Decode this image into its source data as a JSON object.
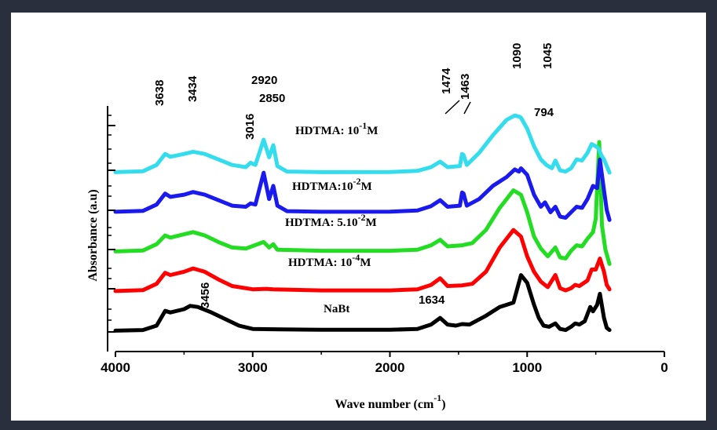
{
  "chart_data": {
    "type": "line",
    "title": "",
    "xlabel": "Wave number (cm",
    "xlabel_sup": "-1",
    "xlabel_close": ")",
    "ylabel": "Absorbance (a.u)",
    "xlim": [
      4000,
      0
    ],
    "x_ticks": [
      "4000",
      "3000",
      "2000",
      "1000",
      "0"
    ],
    "grid": false,
    "series": [
      {
        "name": "NaBt",
        "color": "#000000",
        "offset": 0,
        "points": [
          [
            4000,
            0.02
          ],
          [
            3800,
            0.05
          ],
          [
            3700,
            0.25
          ],
          [
            3638,
            0.92
          ],
          [
            3600,
            0.85
          ],
          [
            3500,
            1.0
          ],
          [
            3456,
            1.15
          ],
          [
            3400,
            1.1
          ],
          [
            3300,
            0.85
          ],
          [
            3200,
            0.55
          ],
          [
            3100,
            0.25
          ],
          [
            3000,
            0.1
          ],
          [
            2800,
            0.08
          ],
          [
            2500,
            0.06
          ],
          [
            2000,
            0.06
          ],
          [
            1800,
            0.1
          ],
          [
            1700,
            0.3
          ],
          [
            1634,
            0.6
          ],
          [
            1580,
            0.3
          ],
          [
            1520,
            0.25
          ],
          [
            1474,
            0.32
          ],
          [
            1420,
            0.3
          ],
          [
            1300,
            0.7
          ],
          [
            1200,
            1.1
          ],
          [
            1100,
            1.3
          ],
          [
            1045,
            2.55
          ],
          [
            1000,
            2.2
          ],
          [
            950,
            1.2
          ],
          [
            915,
            0.6
          ],
          [
            880,
            0.25
          ],
          [
            840,
            0.2
          ],
          [
            794,
            0.35
          ],
          [
            760,
            0.1
          ],
          [
            720,
            0.05
          ],
          [
            680,
            0.2
          ],
          [
            650,
            0.35
          ],
          [
            620,
            0.3
          ],
          [
            580,
            0.45
          ],
          [
            540,
            1.1
          ],
          [
            520,
            0.9
          ],
          [
            490,
            1.2
          ],
          [
            470,
            1.7
          ],
          [
            440,
            0.6
          ],
          [
            420,
            0.15
          ],
          [
            400,
            0.05
          ]
        ]
      },
      {
        "name": "HDTMA: 10",
        "sup": "-4",
        "name_tail": "M",
        "color": "#ff0000",
        "offset": 1,
        "points": [
          [
            4000,
            0.02
          ],
          [
            3800,
            0.06
          ],
          [
            3700,
            0.35
          ],
          [
            3638,
            0.85
          ],
          [
            3600,
            0.75
          ],
          [
            3500,
            0.9
          ],
          [
            3434,
            1.05
          ],
          [
            3350,
            0.9
          ],
          [
            3250,
            0.55
          ],
          [
            3150,
            0.25
          ],
          [
            3000,
            0.1
          ],
          [
            2900,
            0.12
          ],
          [
            2850,
            0.1
          ],
          [
            2500,
            0.05
          ],
          [
            2000,
            0.05
          ],
          [
            1800,
            0.1
          ],
          [
            1700,
            0.3
          ],
          [
            1634,
            0.6
          ],
          [
            1580,
            0.25
          ],
          [
            1474,
            0.28
          ],
          [
            1400,
            0.35
          ],
          [
            1300,
            0.9
          ],
          [
            1200,
            2.0
          ],
          [
            1100,
            2.8
          ],
          [
            1045,
            2.5
          ],
          [
            1000,
            1.6
          ],
          [
            950,
            0.9
          ],
          [
            900,
            0.45
          ],
          [
            850,
            0.2
          ],
          [
            794,
            0.75
          ],
          [
            760,
            0.15
          ],
          [
            720,
            0.05
          ],
          [
            680,
            0.15
          ],
          [
            650,
            0.3
          ],
          [
            620,
            0.25
          ],
          [
            560,
            0.5
          ],
          [
            530,
            1.0
          ],
          [
            500,
            1.0
          ],
          [
            470,
            1.5
          ],
          [
            440,
            0.9
          ],
          [
            420,
            0.3
          ],
          [
            400,
            0.1
          ]
        ]
      },
      {
        "name": "HDTMA: 5.10",
        "sup": "-2",
        "name_tail": "M",
        "color": "#22dd22",
        "offset": 2,
        "points": [
          [
            4000,
            0.02
          ],
          [
            3800,
            0.06
          ],
          [
            3700,
            0.35
          ],
          [
            3638,
            0.75
          ],
          [
            3600,
            0.65
          ],
          [
            3500,
            0.8
          ],
          [
            3434,
            0.9
          ],
          [
            3350,
            0.75
          ],
          [
            3250,
            0.45
          ],
          [
            3150,
            0.2
          ],
          [
            3050,
            0.15
          ],
          [
            2920,
            0.45
          ],
          [
            2880,
            0.2
          ],
          [
            2850,
            0.35
          ],
          [
            2820,
            0.1
          ],
          [
            2500,
            0.05
          ],
          [
            2000,
            0.05
          ],
          [
            1800,
            0.1
          ],
          [
            1700,
            0.3
          ],
          [
            1634,
            0.55
          ],
          [
            1580,
            0.25
          ],
          [
            1474,
            0.3
          ],
          [
            1400,
            0.4
          ],
          [
            1300,
            1.0
          ],
          [
            1200,
            2.0
          ],
          [
            1100,
            2.8
          ],
          [
            1045,
            2.6
          ],
          [
            1000,
            1.8
          ],
          [
            950,
            0.7
          ],
          [
            900,
            0.15
          ],
          [
            850,
            -0.2
          ],
          [
            794,
            0.2
          ],
          [
            760,
            -0.25
          ],
          [
            720,
            -0.3
          ],
          [
            680,
            0.05
          ],
          [
            640,
            0.3
          ],
          [
            600,
            0.25
          ],
          [
            560,
            0.6
          ],
          [
            520,
            0.9
          ],
          [
            500,
            1.5
          ],
          [
            475,
            5.0
          ],
          [
            455,
            1.2
          ],
          [
            430,
            0.1
          ],
          [
            400,
            -0.55
          ]
        ]
      },
      {
        "name": "HDTMA:10",
        "sup": "-2",
        "name_tail": "M",
        "color": "#1a1aee",
        "offset": 3,
        "points": [
          [
            4000,
            0.02
          ],
          [
            3800,
            0.06
          ],
          [
            3700,
            0.35
          ],
          [
            3638,
            0.85
          ],
          [
            3600,
            0.7
          ],
          [
            3500,
            0.8
          ],
          [
            3434,
            0.92
          ],
          [
            3350,
            0.8
          ],
          [
            3250,
            0.55
          ],
          [
            3150,
            0.3
          ],
          [
            3050,
            0.25
          ],
          [
            3016,
            0.4
          ],
          [
            2980,
            0.35
          ],
          [
            2920,
            1.8
          ],
          [
            2880,
            0.6
          ],
          [
            2850,
            1.2
          ],
          [
            2820,
            0.3
          ],
          [
            2750,
            0.05
          ],
          [
            2500,
            0.02
          ],
          [
            2000,
            0.03
          ],
          [
            1800,
            0.08
          ],
          [
            1700,
            0.28
          ],
          [
            1634,
            0.55
          ],
          [
            1580,
            0.25
          ],
          [
            1490,
            0.3
          ],
          [
            1474,
            0.9
          ],
          [
            1463,
            0.85
          ],
          [
            1440,
            0.3
          ],
          [
            1350,
            0.6
          ],
          [
            1250,
            1.2
          ],
          [
            1150,
            1.6
          ],
          [
            1090,
            1.95
          ],
          [
            1060,
            1.85
          ],
          [
            1045,
            2.0
          ],
          [
            1000,
            1.7
          ],
          [
            950,
            0.8
          ],
          [
            900,
            0.25
          ],
          [
            870,
            0.45
          ],
          [
            830,
            0.0
          ],
          [
            794,
            0.25
          ],
          [
            760,
            -0.2
          ],
          [
            720,
            -0.25
          ],
          [
            680,
            0.0
          ],
          [
            640,
            0.25
          ],
          [
            600,
            0.2
          ],
          [
            560,
            0.6
          ],
          [
            520,
            1.2
          ],
          [
            490,
            1.1
          ],
          [
            470,
            2.4
          ],
          [
            440,
            1.0
          ],
          [
            420,
            0.1
          ],
          [
            400,
            -0.35
          ]
        ]
      },
      {
        "name": "HDTMA: 10",
        "sup": "-1",
        "name_tail": "M",
        "color": "#33ddee",
        "offset": 4,
        "points": [
          [
            4000,
            0.02
          ],
          [
            3800,
            0.06
          ],
          [
            3700,
            0.35
          ],
          [
            3638,
            0.85
          ],
          [
            3600,
            0.72
          ],
          [
            3500,
            0.85
          ],
          [
            3434,
            0.95
          ],
          [
            3350,
            0.85
          ],
          [
            3250,
            0.6
          ],
          [
            3150,
            0.35
          ],
          [
            3050,
            0.25
          ],
          [
            3016,
            0.45
          ],
          [
            2980,
            0.35
          ],
          [
            2920,
            1.5
          ],
          [
            2880,
            0.7
          ],
          [
            2850,
            1.25
          ],
          [
            2820,
            0.3
          ],
          [
            2750,
            0.05
          ],
          [
            2500,
            0.02
          ],
          [
            2000,
            0.03
          ],
          [
            1800,
            0.08
          ],
          [
            1700,
            0.25
          ],
          [
            1634,
            0.5
          ],
          [
            1580,
            0.25
          ],
          [
            1490,
            0.3
          ],
          [
            1474,
            0.85
          ],
          [
            1463,
            0.8
          ],
          [
            1440,
            0.35
          ],
          [
            1350,
            0.9
          ],
          [
            1250,
            1.7
          ],
          [
            1150,
            2.4
          ],
          [
            1090,
            2.6
          ],
          [
            1060,
            2.55
          ],
          [
            1045,
            2.5
          ],
          [
            1000,
            2.0
          ],
          [
            950,
            1.2
          ],
          [
            900,
            0.6
          ],
          [
            860,
            0.35
          ],
          [
            820,
            0.2
          ],
          [
            794,
            0.55
          ],
          [
            760,
            0.1
          ],
          [
            720,
            0.05
          ],
          [
            680,
            0.2
          ],
          [
            640,
            0.6
          ],
          [
            600,
            0.55
          ],
          [
            560,
            0.9
          ],
          [
            530,
            1.3
          ],
          [
            500,
            1.2
          ],
          [
            480,
            1.1
          ],
          [
            460,
            0.8
          ],
          [
            440,
            0.6
          ],
          [
            420,
            0.3
          ],
          [
            400,
            0.0
          ]
        ]
      }
    ],
    "peak_annotations": [
      {
        "label": "3638",
        "vertical": true
      },
      {
        "label": "3434",
        "vertical": true
      },
      {
        "label": "2920",
        "vertical": false
      },
      {
        "label": "2850",
        "vertical": false
      },
      {
        "label": "3016",
        "vertical": true
      },
      {
        "label": "1474",
        "vertical": true
      },
      {
        "label": "1463",
        "vertical": true
      },
      {
        "label": "1090",
        "vertical": true
      },
      {
        "label": "1045",
        "vertical": true
      },
      {
        "label": "794",
        "vertical": false
      },
      {
        "label": "3456",
        "vertical": true
      },
      {
        "label": "1634",
        "vertical": false
      }
    ]
  }
}
